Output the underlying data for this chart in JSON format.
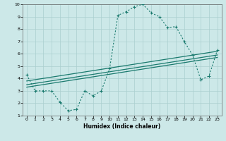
{
  "xlabel": "Humidex (Indice chaleur)",
  "ylabel": "",
  "xlim": [
    -0.5,
    23.5
  ],
  "ylim": [
    1,
    10
  ],
  "yticks": [
    1,
    2,
    3,
    4,
    5,
    6,
    7,
    8,
    9,
    10
  ],
  "xticks": [
    0,
    1,
    2,
    3,
    4,
    5,
    6,
    7,
    8,
    9,
    10,
    11,
    12,
    13,
    14,
    15,
    16,
    17,
    18,
    19,
    20,
    21,
    22,
    23
  ],
  "curve_color": "#1a7a6e",
  "bg_color": "#cce8e8",
  "grid_color": "#aacfcf",
  "main_x": [
    0,
    1,
    2,
    3,
    4,
    5,
    6,
    7,
    8,
    9,
    10,
    11,
    12,
    13,
    14,
    15,
    16,
    17,
    18,
    19,
    20,
    21,
    22,
    23
  ],
  "main_y": [
    4.3,
    3.0,
    3.0,
    3.0,
    2.1,
    1.4,
    1.5,
    3.0,
    2.6,
    3.0,
    4.8,
    9.1,
    9.4,
    9.8,
    10.0,
    9.3,
    9.0,
    8.1,
    8.2,
    7.0,
    5.9,
    3.9,
    4.2,
    6.3
  ],
  "line1_x": [
    0,
    23
  ],
  "line1_y": [
    3.8,
    6.2
  ],
  "line2_x": [
    0,
    23
  ],
  "line2_y": [
    3.5,
    5.9
  ],
  "line3_x": [
    0,
    23
  ],
  "line3_y": [
    3.3,
    5.7
  ]
}
